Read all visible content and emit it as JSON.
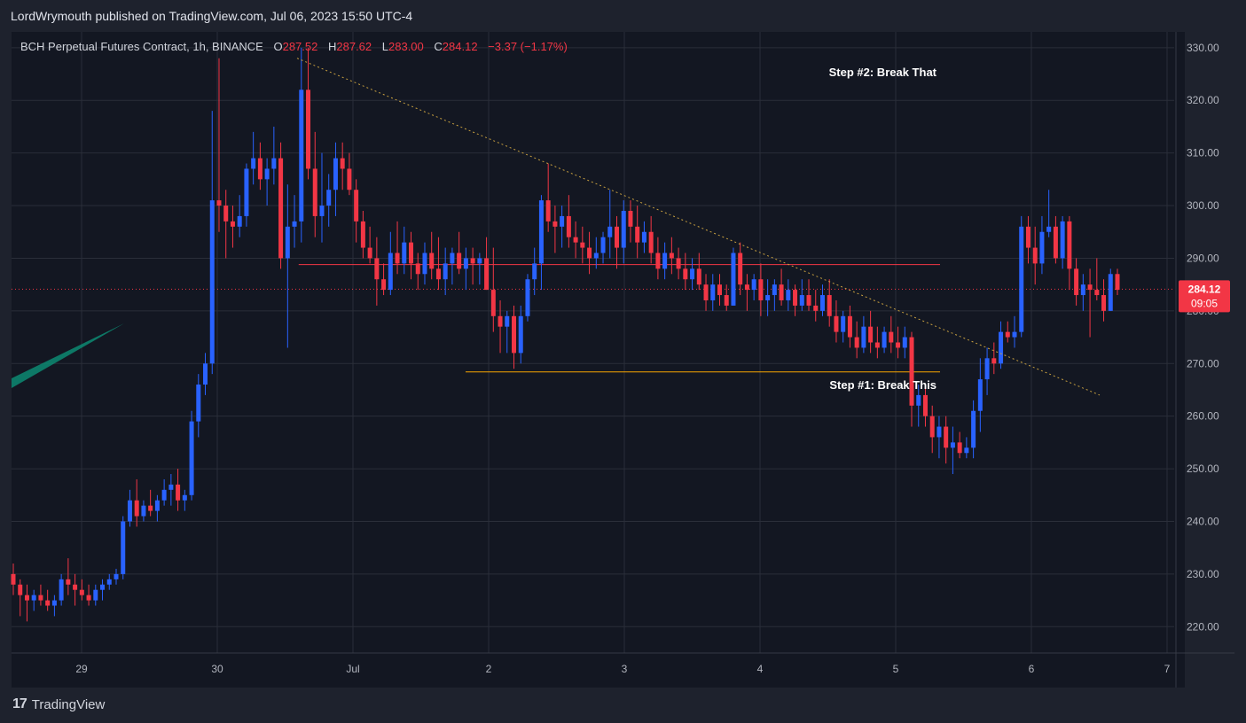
{
  "header": {
    "publisher_text": "LordWrymouth published on TradingView.com, Jul 06, 2023 15:50 UTC-4"
  },
  "legend": {
    "symbol": "BCH Perpetual Futures Contract, 1h, BINANCE",
    "open_label": "O",
    "open": "287.52",
    "high_label": "H",
    "high": "287.62",
    "low_label": "L",
    "low": "283.00",
    "close_label": "C",
    "close": "284.12",
    "change": "−3.37 (−1.17%)"
  },
  "price_tag": {
    "price": "284.12",
    "countdown": "09:05"
  },
  "annotations": {
    "step2": "Step #2: Break That",
    "step1": "Step #1: Break This"
  },
  "footer": {
    "brand": "TradingView",
    "brand_mark": "17"
  },
  "colors": {
    "up": "#2962ff",
    "down": "#f23645",
    "background": "#131722",
    "grid": "#2a2e39",
    "resistance_line": "#f23645",
    "support_line": "#f7a600",
    "trend_line": "#c8a040",
    "tag_bg": "#f23645"
  },
  "chart_data": {
    "type": "candlestick",
    "ylim": [
      215,
      333
    ],
    "y_ticks": [
      "330.00",
      "320.00",
      "310.00",
      "300.00",
      "290.00",
      "280.00",
      "270.00",
      "260.00",
      "250.00",
      "240.00",
      "230.00",
      "220.00"
    ],
    "x_ticks": [
      "29",
      "30",
      "Jul",
      "2",
      "3",
      "4",
      "5",
      "6",
      "7"
    ],
    "grid": true,
    "current_price": 284.12,
    "resistance_level": 288.8,
    "support_level": 268.4,
    "trendline": {
      "start": 328,
      "end": 264
    },
    "candles": [
      [
        230,
        232,
        226,
        228
      ],
      [
        228,
        229,
        222,
        226
      ],
      [
        226,
        228,
        221,
        225
      ],
      [
        225,
        227,
        223,
        226
      ],
      [
        226,
        228,
        224,
        225
      ],
      [
        225,
        227,
        223,
        224
      ],
      [
        224,
        226,
        222,
        225
      ],
      [
        225,
        230,
        224,
        229
      ],
      [
        229,
        233,
        226,
        228
      ],
      [
        228,
        230,
        224,
        227
      ],
      [
        227,
        229,
        225,
        226
      ],
      [
        226,
        228,
        224,
        225
      ],
      [
        225,
        228,
        224,
        227
      ],
      [
        227,
        229,
        225,
        228
      ],
      [
        228,
        230,
        227,
        229
      ],
      [
        229,
        231,
        228,
        230
      ],
      [
        230,
        241,
        229,
        240
      ],
      [
        240,
        246,
        239,
        244
      ],
      [
        244,
        248,
        239,
        241
      ],
      [
        241,
        244,
        240,
        243
      ],
      [
        243,
        246,
        241,
        242
      ],
      [
        242,
        245,
        240,
        244
      ],
      [
        244,
        248,
        243,
        246
      ],
      [
        246,
        249,
        243,
        247
      ],
      [
        247,
        250,
        242,
        244
      ],
      [
        244,
        246,
        242,
        245
      ],
      [
        245,
        261,
        244,
        259
      ],
      [
        259,
        268,
        256,
        266
      ],
      [
        266,
        272,
        264,
        270
      ],
      [
        270,
        318,
        268,
        301
      ],
      [
        301,
        328,
        295,
        300
      ],
      [
        300,
        303,
        290,
        297
      ],
      [
        297,
        300,
        292,
        296
      ],
      [
        296,
        302,
        294,
        298
      ],
      [
        298,
        308,
        296,
        307
      ],
      [
        307,
        314,
        304,
        309
      ],
      [
        309,
        312,
        303,
        305
      ],
      [
        305,
        309,
        300,
        307
      ],
      [
        307,
        315,
        304,
        309
      ],
      [
        309,
        312,
        288,
        290
      ],
      [
        290,
        304,
        273,
        296
      ],
      [
        296,
        302,
        292,
        297
      ],
      [
        297,
        330,
        293,
        322
      ],
      [
        322,
        330,
        305,
        307
      ],
      [
        307,
        314,
        294,
        298
      ],
      [
        298,
        310,
        293,
        300
      ],
      [
        300,
        306,
        296,
        303
      ],
      [
        303,
        312,
        298,
        309
      ],
      [
        309,
        312,
        303,
        307
      ],
      [
        307,
        310,
        302,
        303
      ],
      [
        303,
        305,
        293,
        297
      ],
      [
        297,
        299,
        290,
        292
      ],
      [
        292,
        296,
        289,
        290
      ],
      [
        290,
        294,
        281,
        286
      ],
      [
        286,
        289,
        283,
        284
      ],
      [
        284,
        295,
        283,
        291
      ],
      [
        291,
        297,
        287,
        289
      ],
      [
        289,
        296,
        287,
        293
      ],
      [
        293,
        295,
        286,
        289
      ],
      [
        289,
        291,
        284,
        287
      ],
      [
        287,
        293,
        285,
        291
      ],
      [
        291,
        295,
        286,
        288
      ],
      [
        288,
        294,
        284,
        286
      ],
      [
        286,
        292,
        283,
        289
      ],
      [
        289,
        292,
        285,
        291
      ],
      [
        291,
        295,
        287,
        288
      ],
      [
        288,
        292,
        284,
        290
      ],
      [
        290,
        292,
        285,
        289
      ],
      [
        289,
        291,
        285,
        290
      ],
      [
        290,
        294,
        284,
        284
      ],
      [
        284,
        292,
        276,
        279
      ],
      [
        279,
        282,
        272,
        277
      ],
      [
        277,
        280,
        272,
        279
      ],
      [
        279,
        281,
        269,
        272
      ],
      [
        272,
        281,
        270,
        279
      ],
      [
        279,
        287,
        278,
        286
      ],
      [
        286,
        292,
        283,
        289
      ],
      [
        289,
        302,
        284,
        301
      ],
      [
        301,
        308,
        295,
        297
      ],
      [
        297,
        300,
        291,
        296
      ],
      [
        296,
        300,
        292,
        298
      ],
      [
        298,
        302,
        292,
        294
      ],
      [
        294,
        297,
        290,
        293
      ],
      [
        293,
        296,
        289,
        292
      ],
      [
        292,
        295,
        287,
        290
      ],
      [
        290,
        294,
        288,
        291
      ],
      [
        291,
        295,
        289,
        294
      ],
      [
        294,
        303,
        290,
        296
      ],
      [
        296,
        298,
        288,
        292
      ],
      [
        292,
        301,
        289,
        299
      ],
      [
        299,
        301,
        293,
        296
      ],
      [
        296,
        300,
        290,
        293
      ],
      [
        293,
        297,
        291,
        295
      ],
      [
        295,
        298,
        289,
        291
      ],
      [
        291,
        294,
        286,
        288
      ],
      [
        288,
        293,
        286,
        291
      ],
      [
        291,
        294,
        287,
        290
      ],
      [
        290,
        292,
        286,
        288
      ],
      [
        288,
        291,
        284,
        286
      ],
      [
        286,
        290,
        284,
        288
      ],
      [
        288,
        291,
        284,
        285
      ],
      [
        285,
        287,
        280,
        282
      ],
      [
        282,
        287,
        280,
        285
      ],
      [
        285,
        287,
        281,
        283
      ],
      [
        283,
        285,
        280,
        281
      ],
      [
        281,
        292,
        281,
        291
      ],
      [
        291,
        293,
        283,
        285
      ],
      [
        285,
        287,
        280,
        284
      ],
      [
        284,
        287,
        282,
        286
      ],
      [
        286,
        289,
        279,
        282
      ],
      [
        282,
        286,
        279,
        283
      ],
      [
        283,
        286,
        280,
        285
      ],
      [
        285,
        288,
        281,
        282
      ],
      [
        282,
        286,
        280,
        284
      ],
      [
        284,
        285,
        279,
        281
      ],
      [
        281,
        286,
        280,
        283
      ],
      [
        283,
        286,
        280,
        281
      ],
      [
        281,
        284,
        278,
        280
      ],
      [
        280,
        285,
        279,
        283
      ],
      [
        283,
        286,
        277,
        279
      ],
      [
        279,
        282,
        274,
        276
      ],
      [
        276,
        280,
        274,
        279
      ],
      [
        279,
        281,
        273,
        275
      ],
      [
        275,
        278,
        271,
        273
      ],
      [
        273,
        279,
        272,
        277
      ],
      [
        277,
        280,
        272,
        274
      ],
      [
        274,
        277,
        271,
        273
      ],
      [
        273,
        277,
        272,
        276
      ],
      [
        276,
        279,
        272,
        274
      ],
      [
        274,
        277,
        271,
        273
      ],
      [
        273,
        277,
        271,
        275
      ],
      [
        275,
        276,
        258,
        262
      ],
      [
        262,
        266,
        258,
        264
      ],
      [
        264,
        266,
        258,
        260
      ],
      [
        260,
        262,
        253,
        256
      ],
      [
        256,
        260,
        252,
        258
      ],
      [
        258,
        260,
        251,
        254
      ],
      [
        254,
        258,
        249,
        255
      ],
      [
        255,
        257,
        252,
        253
      ],
      [
        253,
        256,
        252,
        254
      ],
      [
        254,
        263,
        252,
        261
      ],
      [
        261,
        271,
        257,
        267
      ],
      [
        267,
        273,
        264,
        271
      ],
      [
        271,
        274,
        268,
        270
      ],
      [
        270,
        278,
        269,
        276
      ],
      [
        276,
        278,
        274,
        275
      ],
      [
        275,
        279,
        273,
        276
      ],
      [
        276,
        298,
        275,
        296
      ],
      [
        296,
        298,
        289,
        292
      ],
      [
        292,
        296,
        285,
        289
      ],
      [
        289,
        298,
        287,
        295
      ],
      [
        295,
        303,
        294,
        296
      ],
      [
        296,
        298,
        289,
        290
      ],
      [
        290,
        298,
        288,
        297
      ],
      [
        297,
        298,
        284,
        288
      ],
      [
        288,
        290,
        281,
        283
      ],
      [
        283,
        287,
        280,
        285
      ],
      [
        285,
        288,
        275,
        284
      ],
      [
        284,
        290,
        282,
        283
      ],
      [
        283,
        286,
        278,
        280
      ],
      [
        280,
        288,
        280,
        287
      ],
      [
        287,
        288,
        283,
        284
      ]
    ]
  }
}
